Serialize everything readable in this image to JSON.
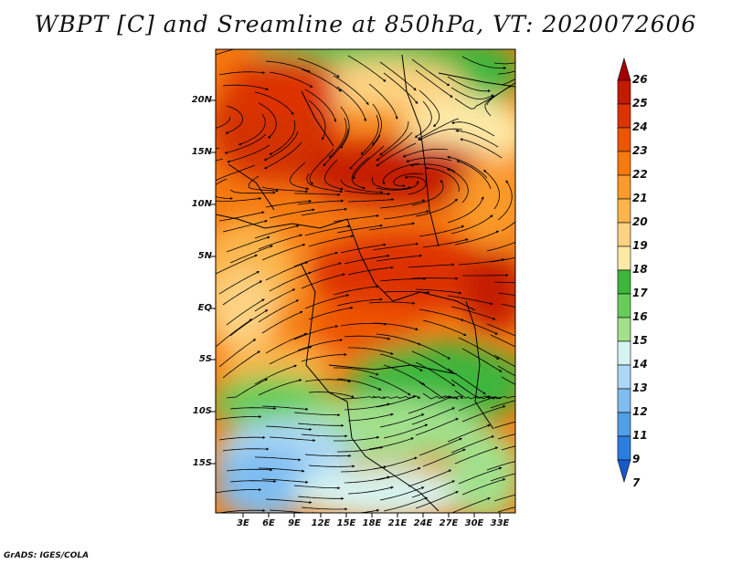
{
  "title": "WBPT [C] and Sreamline at 850hPa, VT: 2020072606",
  "credit": "GrADS: IGES/COLA",
  "lat_ticks": [
    "20N",
    "15N",
    "10N",
    "5N",
    "EQ",
    "5S",
    "10S",
    "15S"
  ],
  "lon_ticks": [
    "3E",
    "6E",
    "9E",
    "12E",
    "15E",
    "18E",
    "21E",
    "24E",
    "27E",
    "30E",
    "33E"
  ],
  "colorbar": {
    "labels": [
      "26",
      "25",
      "24",
      "23",
      "22",
      "21",
      "20",
      "19",
      "18",
      "17",
      "16",
      "15",
      "14",
      "13",
      "12",
      "11",
      "9",
      "7"
    ],
    "colors": [
      "#a50000",
      "#c41a00",
      "#dd3300",
      "#ee5500",
      "#f77a0a",
      "#fa9a2a",
      "#fbb54c",
      "#fdd282",
      "#fde9a6",
      "#3cb63c",
      "#69cc5a",
      "#a2e08c",
      "#d5f3ef",
      "#acd7f5",
      "#7fbdf1",
      "#529ee8",
      "#2a7ee0",
      "#1758cc"
    ]
  },
  "colors": {
    "frame": "#000000",
    "streamline": "#000000"
  }
}
